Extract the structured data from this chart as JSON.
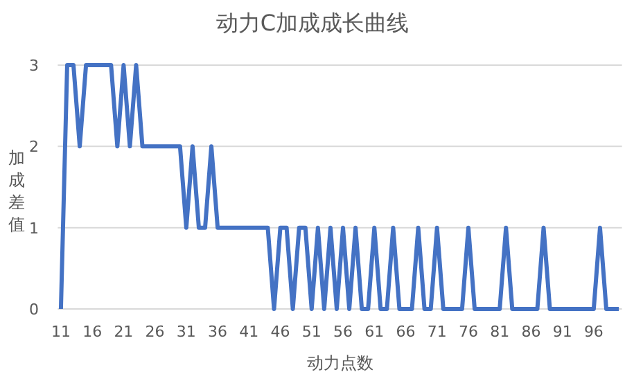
{
  "chart_data": {
    "type": "line",
    "title": "动力C加成成长曲线",
    "xlabel": "动力点数",
    "ylabel": "加成差值",
    "categories": [
      "11",
      null,
      null,
      null,
      null,
      "16",
      null,
      null,
      null,
      null,
      "21",
      null,
      null,
      null,
      null,
      "26",
      null,
      null,
      null,
      null,
      "31",
      null,
      null,
      null,
      null,
      "36",
      null,
      null,
      null,
      null,
      "41",
      null,
      null,
      null,
      null,
      "46",
      null,
      null,
      null,
      null,
      "51",
      null,
      null,
      null,
      null,
      "56",
      null,
      null,
      null,
      null,
      "61",
      null,
      null,
      null,
      null,
      "66",
      null,
      null,
      null,
      null,
      "71",
      null,
      null,
      null,
      null,
      "76",
      null,
      null,
      null,
      null,
      "81",
      null,
      null,
      null,
      null,
      "86",
      null,
      null,
      null,
      null,
      "91",
      null,
      null,
      null,
      null,
      "96",
      null,
      null,
      null,
      null
    ],
    "series": [
      {
        "color": "#4472c4",
        "values": [
          0,
          3,
          3,
          2,
          3,
          3,
          3,
          3,
          3,
          2,
          3,
          2,
          3,
          2,
          2,
          2,
          2,
          2,
          2,
          2,
          1,
          2,
          1,
          1,
          2,
          1,
          1,
          1,
          1,
          1,
          1,
          1,
          1,
          1,
          0,
          1,
          1,
          0,
          1,
          1,
          0,
          1,
          0,
          1,
          0,
          1,
          0,
          1,
          0,
          0,
          1,
          0,
          0,
          1,
          0,
          0,
          0,
          1,
          0,
          0,
          1,
          0,
          0,
          0,
          0,
          1,
          0,
          0,
          0,
          0,
          0,
          1,
          0,
          0,
          0,
          0,
          0,
          1,
          0,
          0,
          0,
          0,
          0,
          0,
          0,
          0,
          1,
          0,
          0,
          0
        ]
      }
    ],
    "ylim": [
      0,
      3
    ],
    "yticks": [
      0,
      1,
      2,
      3
    ],
    "grid": "y",
    "marker": "none",
    "line_style": "solid"
  }
}
